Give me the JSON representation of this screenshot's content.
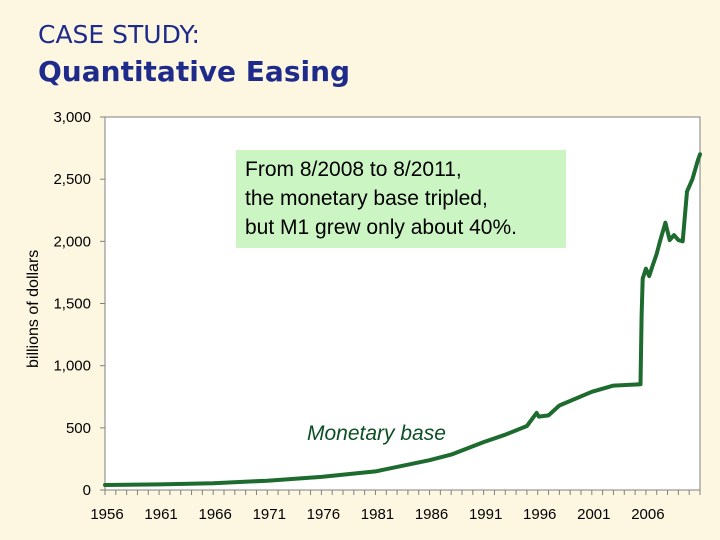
{
  "header": {
    "case_label": "CASE STUDY:",
    "title": "Quantitative Easing"
  },
  "annotation": {
    "lines": [
      "From 8/2008 to 8/2011,",
      "the monetary base tripled,",
      "but M1 grew only about 40%."
    ],
    "background": "#ccf5c4"
  },
  "chart_data": {
    "type": "line",
    "title": "",
    "xlabel": "",
    "ylabel": "billions of dollars",
    "xlim": [
      1956,
      2011
    ],
    "ylim": [
      0,
      3000
    ],
    "x_ticks": [
      1956,
      1961,
      1966,
      1971,
      1976,
      1981,
      1986,
      1991,
      1996,
      2001,
      2006
    ],
    "y_ticks": [
      0,
      500,
      1000,
      1500,
      2000,
      2500,
      3000
    ],
    "y_tick_labels": [
      "0",
      "500",
      "1,000",
      "1,500",
      "2,000",
      "2,500",
      "3,000"
    ],
    "grid": false,
    "series_color": "#1d6b2e",
    "series": [
      {
        "name": "Monetary base",
        "x": [
          1956,
          1961,
          1966,
          1971,
          1976,
          1981,
          1986,
          1988,
          1991,
          1993,
          1995,
          1995.9,
          1996.1,
          1997,
          1998,
          2001,
          2003,
          2005.5,
          2005.6,
          2005.7,
          2006,
          2006.3,
          2006.6,
          2007,
          2007.3,
          2007.8,
          2008.2,
          2008.6,
          2009,
          2009.4,
          2009.8,
          2010.3,
          2010.8,
          2011
        ],
        "y": [
          40,
          45,
          55,
          75,
          105,
          150,
          240,
          285,
          385,
          445,
          515,
          620,
          590,
          600,
          680,
          790,
          840,
          850,
          1400,
          1700,
          1780,
          1720,
          1800,
          1900,
          2000,
          2150,
          2010,
          2050,
          2010,
          2000,
          2400,
          2500,
          2650,
          2700
        ]
      }
    ]
  }
}
